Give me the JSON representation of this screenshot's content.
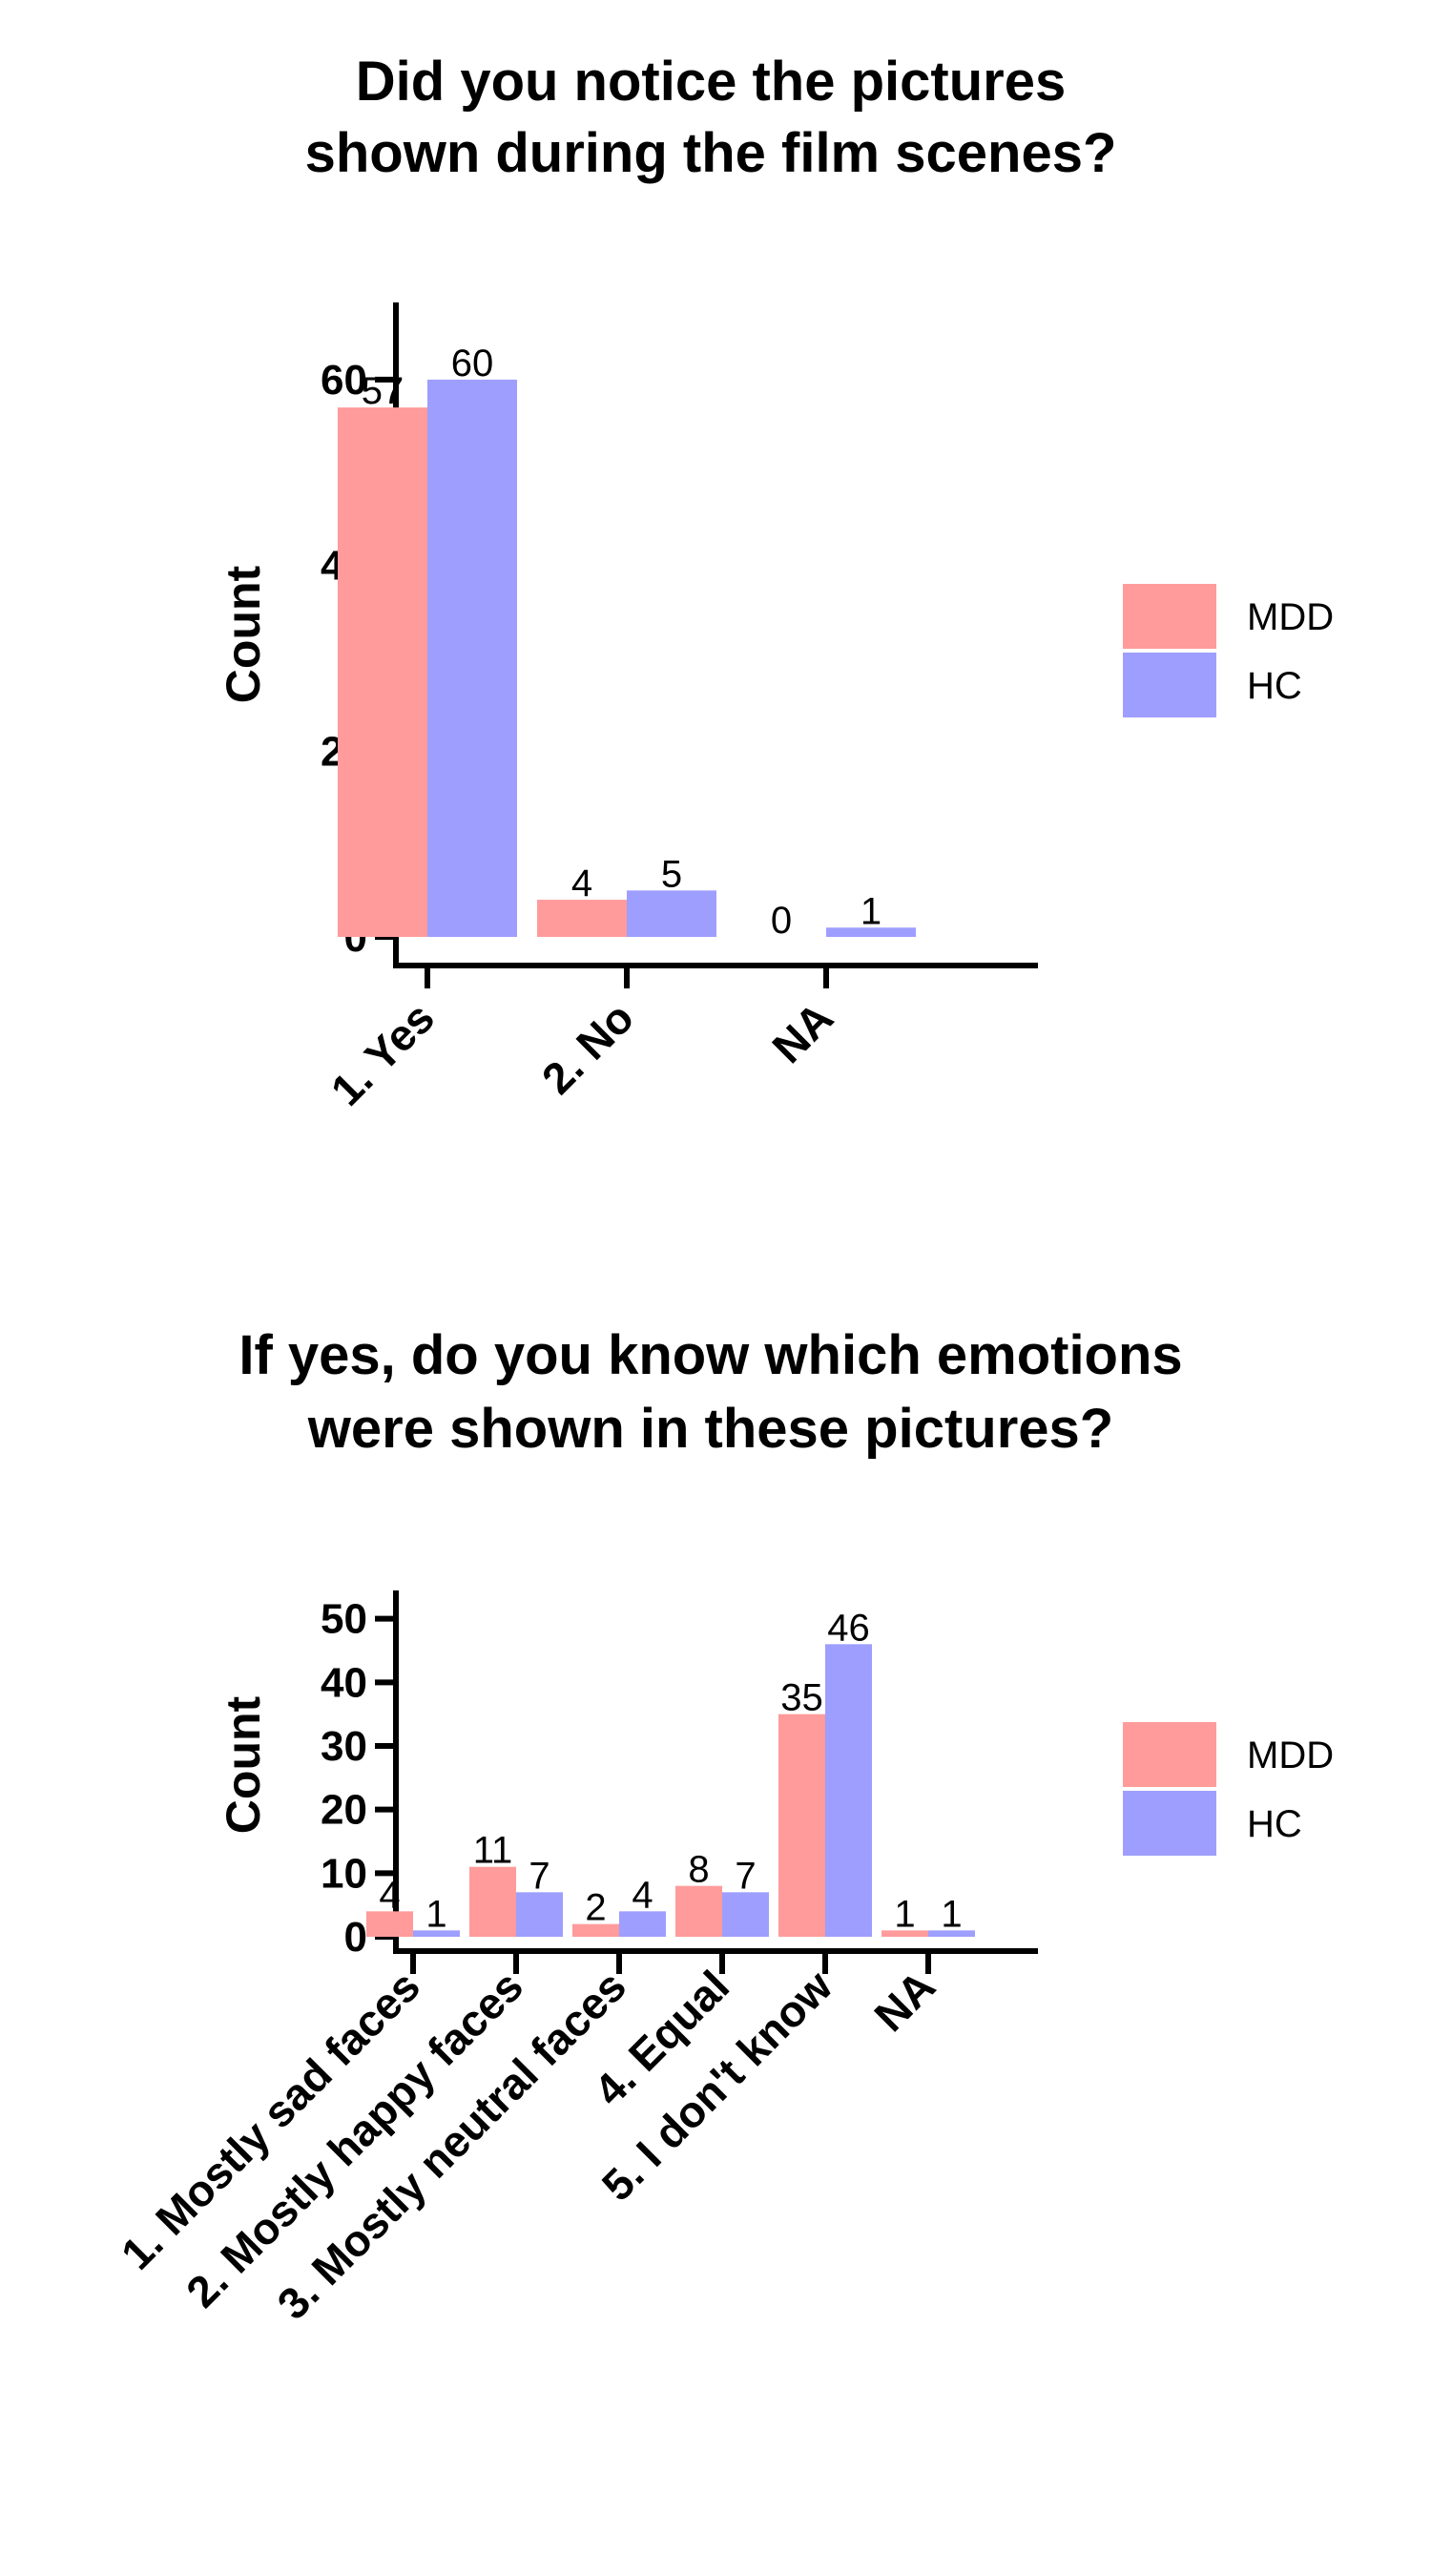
{
  "colors": {
    "MDD": "#ff9b9b",
    "HC": "#9e9eff",
    "axis": "#000000"
  },
  "chart_data": [
    {
      "type": "bar",
      "title_lines": [
        "Did you notice the pictures",
        "shown during the film scenes?"
      ],
      "xlabel": "",
      "ylabel": "Count",
      "ylim": [
        0,
        68
      ],
      "yticks": [
        0,
        20,
        40,
        60
      ],
      "categories": [
        "1. Yes",
        "2. No",
        "NA"
      ],
      "series": [
        {
          "name": "MDD",
          "values": [
            57,
            4,
            0
          ]
        },
        {
          "name": "HC",
          "values": [
            60,
            5,
            1
          ]
        }
      ],
      "legend": [
        "MDD",
        "HC"
      ],
      "legend_position": "right",
      "grid": false
    },
    {
      "type": "bar",
      "title_lines": [
        "If yes, do you know which emotions",
        "were shown in these pictures?"
      ],
      "xlabel": "",
      "ylabel": "Count",
      "ylim": [
        0,
        54
      ],
      "yticks": [
        0,
        10,
        20,
        30,
        40,
        50
      ],
      "categories": [
        "1. Mostly sad faces",
        "2. Mostly happy faces",
        "3. Mostly neutral faces",
        "4. Equal",
        "5. I don't know",
        "NA"
      ],
      "series": [
        {
          "name": "MDD",
          "values": [
            4,
            11,
            2,
            8,
            35,
            1
          ]
        },
        {
          "name": "HC",
          "values": [
            1,
            7,
            4,
            7,
            46,
            1
          ]
        }
      ],
      "legend": [
        "MDD",
        "HC"
      ],
      "legend_position": "right",
      "grid": false
    }
  ]
}
